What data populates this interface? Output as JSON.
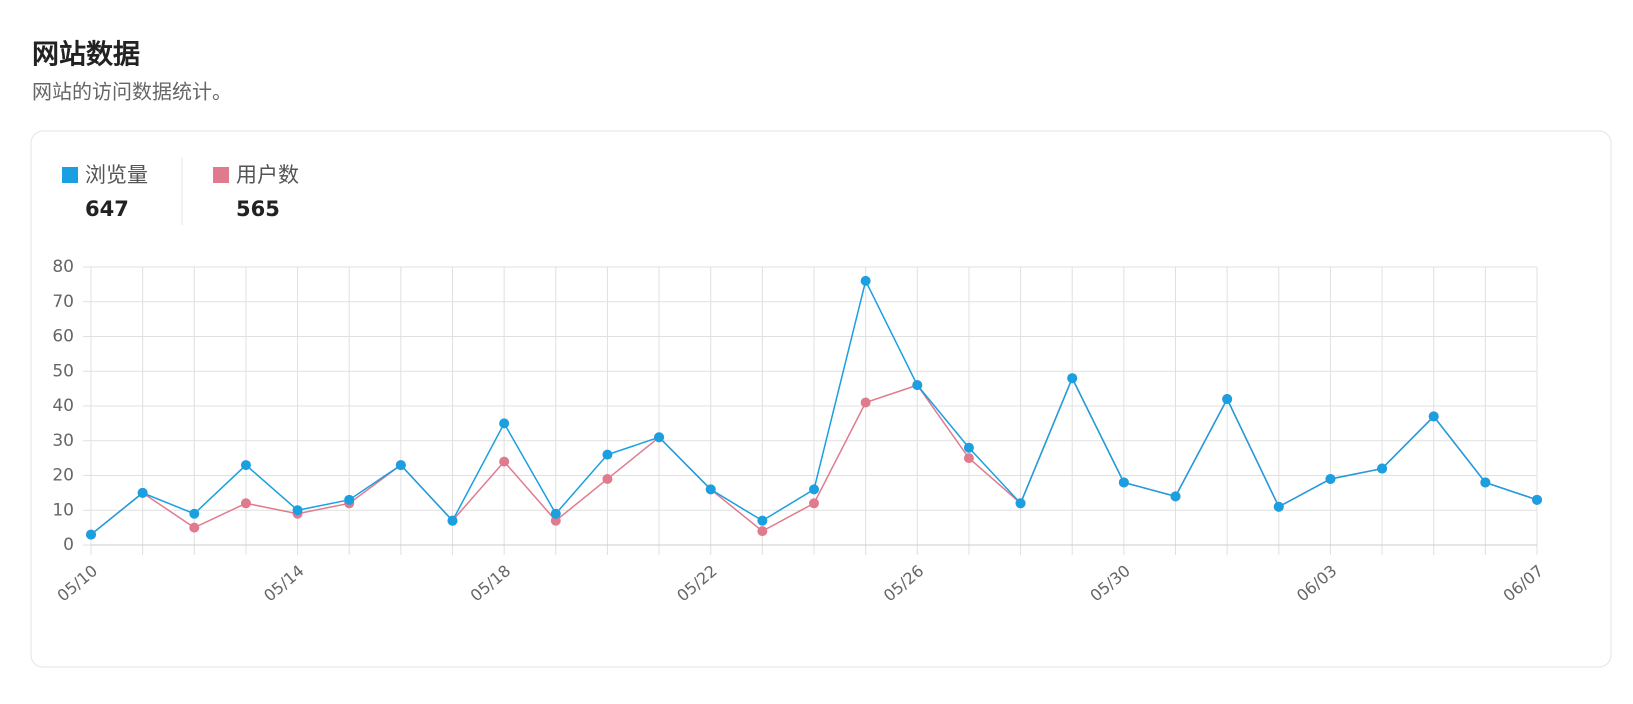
{
  "header": {
    "title": "网站数据",
    "subtitle": "网站的访问数据统计。"
  },
  "chart_data": {
    "type": "line",
    "categories": [
      "05/10",
      null,
      null,
      null,
      "05/14",
      null,
      null,
      null,
      "05/18",
      null,
      null,
      null,
      "05/22",
      null,
      null,
      null,
      "05/26",
      null,
      null,
      null,
      "05/30",
      null,
      null,
      null,
      "06/03",
      null,
      null,
      null,
      "06/07"
    ],
    "series": [
      {
        "name": "浏览量",
        "color": "#1a9fe0",
        "total": 647,
        "values": [
          3,
          15,
          9,
          23,
          10,
          13,
          23,
          7,
          35,
          9,
          26,
          31,
          16,
          7,
          16,
          76,
          46,
          28,
          12,
          48,
          18,
          14,
          42,
          11,
          19,
          22,
          37,
          18,
          13
        ]
      },
      {
        "name": "用户数",
        "color": "#e07b8e",
        "total": 565,
        "values": [
          3,
          15,
          5,
          12,
          9,
          12,
          23,
          7,
          24,
          7,
          19,
          31,
          16,
          4,
          12,
          41,
          46,
          25,
          12,
          48,
          18,
          14,
          42,
          11,
          19,
          22,
          37,
          18,
          13
        ]
      }
    ],
    "ylim": [
      0,
      80
    ],
    "yticks": [
      0,
      10,
      20,
      30,
      40,
      50,
      60,
      70,
      80
    ],
    "grid": true
  }
}
